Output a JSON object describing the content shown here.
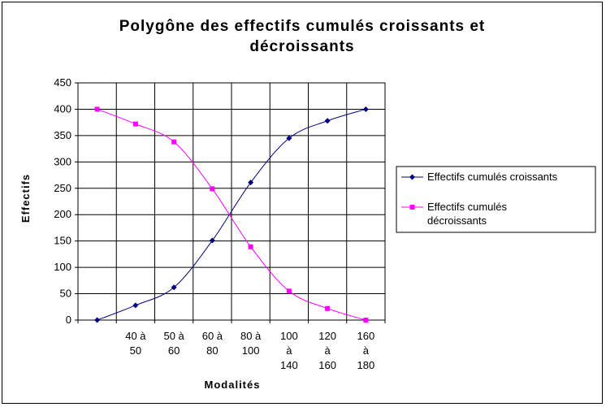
{
  "chart_data": {
    "type": "line",
    "title": [
      "Polygône des effectifs cumulés croissants et",
      "décroissants"
    ],
    "xlabel": "Modalités",
    "ylabel": "Effectifs",
    "ylim": [
      0,
      450
    ],
    "yticks": [
      "0",
      "50",
      "100",
      "150",
      "200",
      "250",
      "300",
      "350",
      "400",
      "450"
    ],
    "categories": [
      [],
      [
        "40 à",
        "50"
      ],
      [
        "50 à",
        "60"
      ],
      [
        "60 à",
        "80"
      ],
      [
        "80 à",
        "100"
      ],
      [
        "100",
        "à",
        "140"
      ],
      [
        "120",
        "à",
        "160"
      ],
      [
        "160",
        "à",
        "180"
      ]
    ],
    "grid": true,
    "legend_position": "right",
    "series": [
      {
        "name": "Effectifs cumulés croissants",
        "color": "#000080",
        "marker": "diamond",
        "values": [
          0,
          28,
          62,
          151,
          261,
          345,
          378,
          400
        ]
      },
      {
        "name": "Effectifs cumulés décroissants",
        "name_lines": [
          "Effectifs cumulés",
          "décroissants"
        ],
        "color": "#ff00ff",
        "marker": "square",
        "values": [
          400,
          372,
          338,
          249,
          139,
          55,
          22,
          0
        ]
      }
    ]
  }
}
